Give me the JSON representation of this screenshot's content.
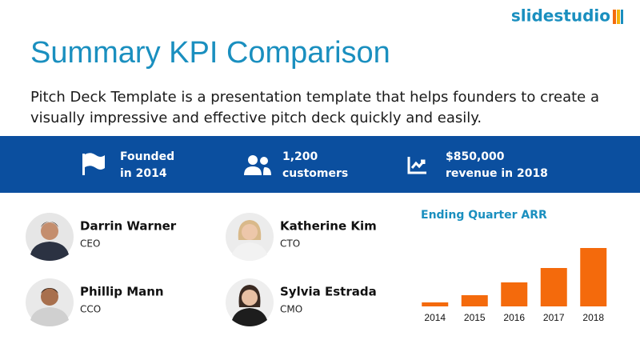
{
  "brand": "slidestudio",
  "header": {
    "title": "Summary KPI Comparison",
    "description": [
      "Pitch Deck Template is a presentation template that helps founders to create a",
      "visually impressive and effective pitch deck quickly and easily."
    ]
  },
  "kpis": [
    {
      "lines": [
        "Founded",
        "in 2014"
      ]
    },
    {
      "lines": [
        "1,200",
        "customers"
      ]
    },
    {
      "lines": [
        "$850,000",
        "revenue in 2018"
      ]
    }
  ],
  "people": [
    {
      "name": "Darrin Warner",
      "role": "CEO"
    },
    {
      "name": "Katherine Kim",
      "role": "CTO"
    },
    {
      "name": "Phillip Mann",
      "role": "CCO"
    },
    {
      "name": "Sylvia Estrada",
      "role": "CMO"
    }
  ],
  "chart_data": {
    "type": "bar",
    "title": "Ending Quarter ARR",
    "categories": [
      "2014",
      "2015",
      "2016",
      "2017",
      "2018"
    ],
    "values": [
      5,
      14,
      30,
      48,
      73
    ],
    "color": "#f46a0c"
  }
}
